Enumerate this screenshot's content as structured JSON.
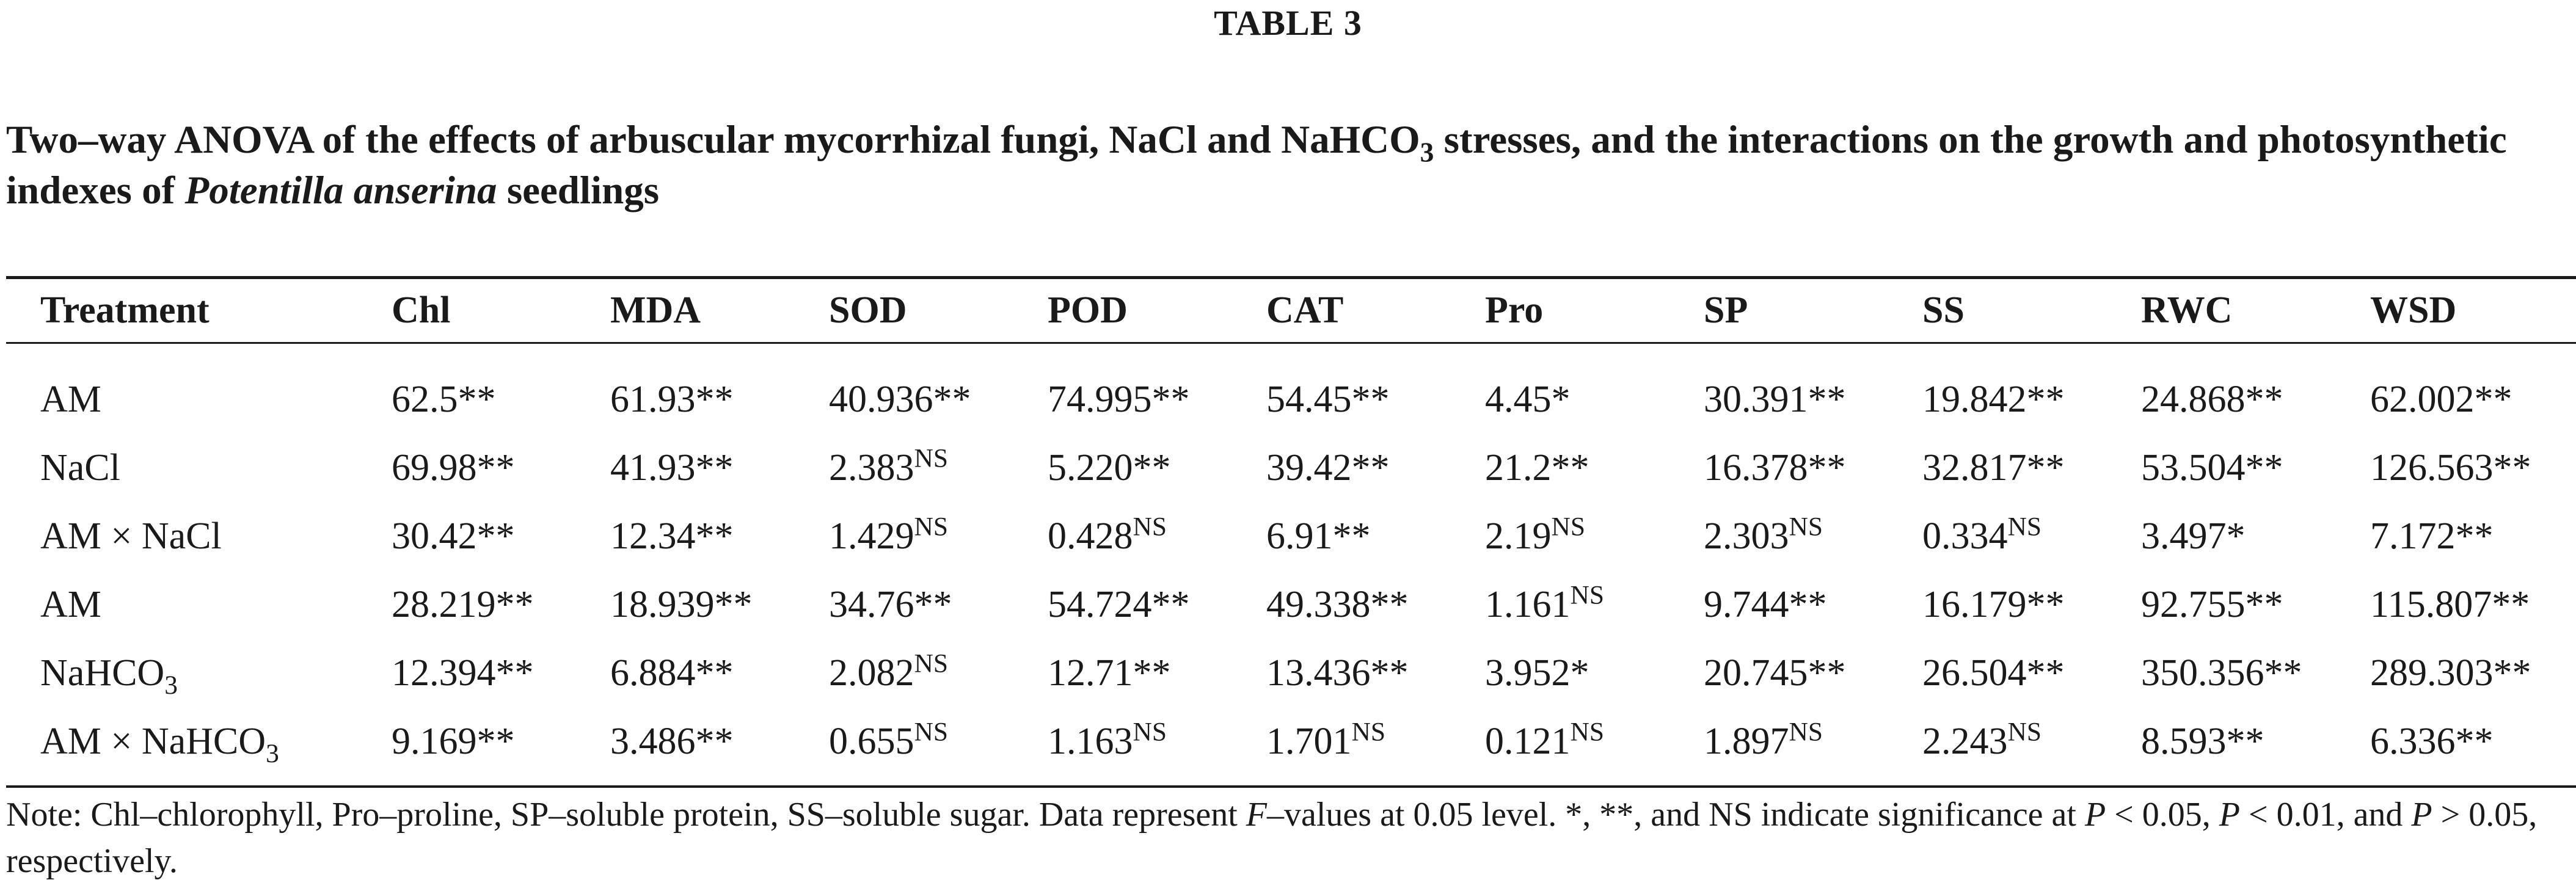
{
  "table_label": "TABLE 3",
  "caption": {
    "part1": "Two–way ANOVA of the effects of arbuscular mycorrhizal fungi, NaCl and NaHCO",
    "sub": "3",
    "part2": " stresses, and the interactions on the growth and photosynthetic indexes of ",
    "species": "Potentilla anserina",
    "part3": " seedlings"
  },
  "columns": [
    "Treatment",
    "Chl",
    "MDA",
    "SOD",
    "POD",
    "CAT",
    "Pro",
    "SP",
    "SS",
    "RWC",
    "WSD"
  ],
  "rows": [
    {
      "treatment": "AM",
      "treatment_sub": "",
      "cells": [
        {
          "v": "62.5",
          "s": "**"
        },
        {
          "v": "61.93",
          "s": "**"
        },
        {
          "v": "40.936",
          "s": "**"
        },
        {
          "v": "74.995",
          "s": "**"
        },
        {
          "v": "54.45",
          "s": "**"
        },
        {
          "v": "4.45",
          "s": "*"
        },
        {
          "v": "30.391",
          "s": "**"
        },
        {
          "v": "19.842",
          "s": "**"
        },
        {
          "v": "24.868",
          "s": "**"
        },
        {
          "v": "62.002",
          "s": "**"
        }
      ]
    },
    {
      "treatment": "NaCl",
      "treatment_sub": "",
      "cells": [
        {
          "v": "69.98",
          "s": "**"
        },
        {
          "v": "41.93",
          "s": "**"
        },
        {
          "v": "2.383",
          "sup": "NS"
        },
        {
          "v": "5.220",
          "s": "**"
        },
        {
          "v": "39.42",
          "s": "**"
        },
        {
          "v": "21.2",
          "s": "**"
        },
        {
          "v": "16.378",
          "s": "**"
        },
        {
          "v": "32.817",
          "s": "**"
        },
        {
          "v": "53.504",
          "s": "**"
        },
        {
          "v": "126.563",
          "s": "**"
        }
      ]
    },
    {
      "treatment": "AM × NaCl",
      "treatment_sub": "",
      "cells": [
        {
          "v": "30.42",
          "s": "**"
        },
        {
          "v": "12.34",
          "s": "**"
        },
        {
          "v": "1.429",
          "sup": "NS"
        },
        {
          "v": "0.428",
          "sup": "NS"
        },
        {
          "v": "6.91",
          "s": "**"
        },
        {
          "v": "2.19",
          "sup": "NS"
        },
        {
          "v": "2.303",
          "sup": "NS"
        },
        {
          "v": "0.334",
          "sup": "NS"
        },
        {
          "v": "3.497",
          "s": "*"
        },
        {
          "v": "7.172",
          "s": "**"
        }
      ]
    },
    {
      "treatment": "AM",
      "treatment_sub": "",
      "cells": [
        {
          "v": "28.219",
          "s": "**"
        },
        {
          "v": "18.939",
          "s": "**"
        },
        {
          "v": "34.76",
          "s": "**"
        },
        {
          "v": "54.724",
          "s": "**"
        },
        {
          "v": "49.338",
          "s": "**"
        },
        {
          "v": "1.161",
          "sup": "NS"
        },
        {
          "v": "9.744",
          "s": "**"
        },
        {
          "v": "16.179",
          "s": "**"
        },
        {
          "v": "92.755",
          "s": "**"
        },
        {
          "v": "115.807",
          "s": "**"
        }
      ]
    },
    {
      "treatment": "NaHCO",
      "treatment_sub": "3",
      "cells": [
        {
          "v": "12.394",
          "s": "**"
        },
        {
          "v": "6.884",
          "s": "**"
        },
        {
          "v": "2.082",
          "sup": "NS"
        },
        {
          "v": "12.71",
          "s": "**"
        },
        {
          "v": "13.436",
          "s": "**"
        },
        {
          "v": "3.952",
          "s": "*"
        },
        {
          "v": "20.745",
          "s": "**"
        },
        {
          "v": "26.504",
          "s": "**"
        },
        {
          "v": "350.356",
          "s": "**"
        },
        {
          "v": "289.303",
          "s": "**"
        }
      ]
    },
    {
      "treatment": "AM × NaHCO",
      "treatment_sub": "3",
      "cells": [
        {
          "v": "9.169",
          "s": "**"
        },
        {
          "v": "3.486",
          "s": "**"
        },
        {
          "v": "0.655",
          "sup": "NS"
        },
        {
          "v": "1.163",
          "sup": "NS"
        },
        {
          "v": "1.701",
          "sup": "NS"
        },
        {
          "v": "0.121",
          "sup": "NS"
        },
        {
          "v": "1.897",
          "sup": "NS"
        },
        {
          "v": "2.243",
          "sup": "NS"
        },
        {
          "v": "8.593",
          "s": "**"
        },
        {
          "v": "6.336",
          "s": "**"
        }
      ]
    }
  ],
  "note": {
    "a": "Note: Chl–chlorophyll, Pro–proline, SP–soluble protein, SS–soluble sugar. Data represent ",
    "f": "F",
    "b": "–values at 0.05 level. *, **, and NS indicate significance at ",
    "p1": "P",
    "c": " < 0.05, ",
    "p2": "P",
    "d": " < 0.01, and ",
    "p3": "P",
    "e": " > 0.05, respectively."
  }
}
